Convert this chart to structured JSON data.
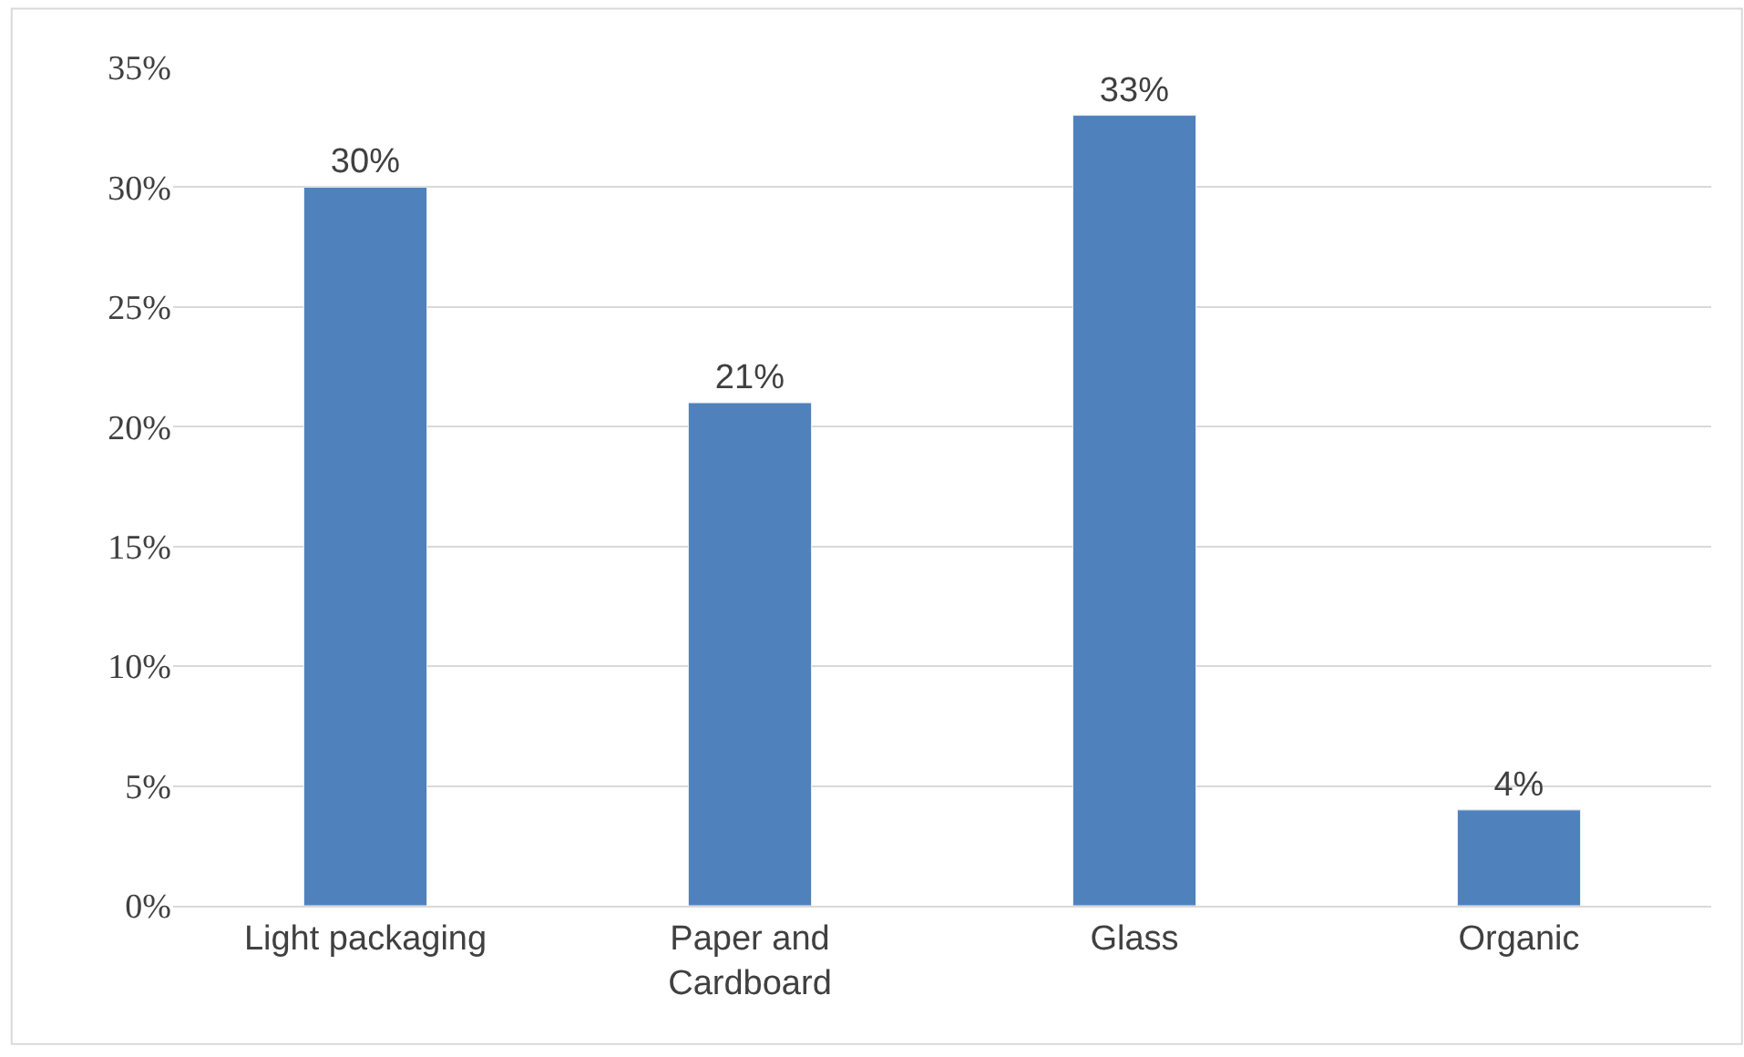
{
  "chart_data": {
    "type": "bar",
    "categories": [
      "Light packaging",
      "Paper and Cardboard",
      "Glass",
      "Organic"
    ],
    "values": [
      30,
      21,
      33,
      4
    ],
    "value_labels": [
      "30%",
      "21%",
      "33%",
      "4%"
    ],
    "color": "#4f81bd",
    "ylim": [
      0,
      35
    ],
    "yticks": [
      {
        "value": 0,
        "label": "0%"
      },
      {
        "value": 5,
        "label": "5%"
      },
      {
        "value": 10,
        "label": "10%"
      },
      {
        "value": 15,
        "label": "15%"
      },
      {
        "value": 20,
        "label": "20%"
      },
      {
        "value": 25,
        "label": "25%"
      },
      {
        "value": 30,
        "label": "30%"
      },
      {
        "value": 35,
        "label": "35%"
      }
    ],
    "grid": "y"
  }
}
